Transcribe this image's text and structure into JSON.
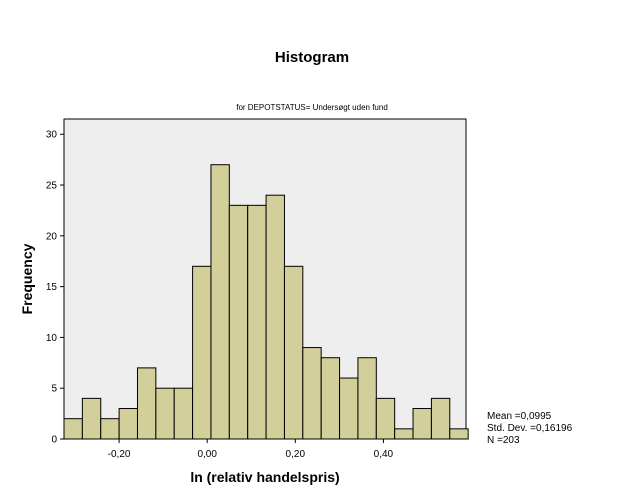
{
  "chart_data": {
    "type": "bar",
    "title": "Histogram",
    "subtitle": "for DEPOTSTATUS= Undersøgt uden fund",
    "xlabel": "ln (relativ handelspris)",
    "ylabel": "Frequency",
    "xlim": [
      -0.325,
      0.5875
    ],
    "ylim": [
      0,
      31.5
    ],
    "bin_width": 0.0417,
    "bin_start": -0.325,
    "bins": [
      -0.3042,
      -0.2625,
      -0.2208,
      -0.1792,
      -0.1375,
      -0.0958,
      -0.0542,
      -0.0125,
      0.0292,
      0.0708,
      0.1125,
      0.1542,
      0.1958,
      0.2375,
      0.2792,
      0.3208,
      0.3625,
      0.4042,
      0.4458,
      0.4875,
      0.5292,
      0.5708
    ],
    "values": [
      2,
      4,
      2,
      3,
      7,
      5,
      5,
      17,
      27,
      23,
      23,
      24,
      17,
      9,
      8,
      6,
      8,
      4,
      1,
      3,
      4,
      1
    ],
    "x_ticks": [
      -0.2,
      0.0,
      0.2,
      0.4
    ],
    "x_tick_labels": [
      "-0,20",
      "0,00",
      "0,20",
      "0,40"
    ],
    "y_ticks": [
      0,
      5,
      10,
      15,
      20,
      25,
      30
    ],
    "y_tick_labels": [
      "0",
      "5",
      "10",
      "15",
      "20",
      "25",
      "30"
    ],
    "grid": false,
    "bar_color": "#d3cf9b",
    "plot_background": "#eeeeee",
    "stats": {
      "mean": "Mean =0,0995",
      "std_dev": "Std. Dev. =0,16196",
      "n": "N =203"
    }
  }
}
